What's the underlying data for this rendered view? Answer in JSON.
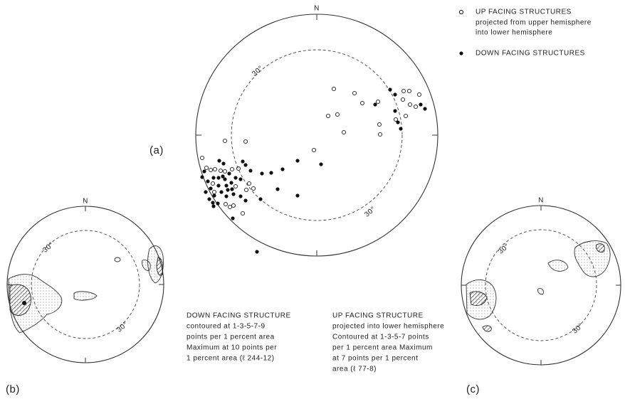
{
  "legend": {
    "up": [
      "UP FACING STRUCTURES",
      "projected from upper hemisphere",
      "into lower hemisphere"
    ],
    "down": "DOWN FACING STRUCTURES"
  },
  "panels": [
    {
      "label": "(a)",
      "north": "N",
      "dashed_label_upper": "30°",
      "dashed_label_lower": "30°"
    },
    {
      "label": "(b)",
      "north": "N",
      "dashed_label_upper": "30°",
      "dashed_label_lower": "30°",
      "caption": [
        "DOWN FACING STRUCTURE",
        "contoured at 1-3-5-7-9",
        "points per 1 percent area",
        "Maximum at 10 points per",
        "1 percent area  (ℓ 244-12)"
      ]
    },
    {
      "label": "(c)",
      "north": "N",
      "dashed_label_upper": "30°",
      "dashed_label_lower": "30°",
      "caption": [
        "UP FACING STRUCTURE",
        "projected into lower hemisphere",
        "Contoured at 1-3-5-7 points",
        "per 1 percent area Maximum",
        "at 7 points per 1 percent",
        "area  (ℓ 77-8)"
      ]
    }
  ]
}
